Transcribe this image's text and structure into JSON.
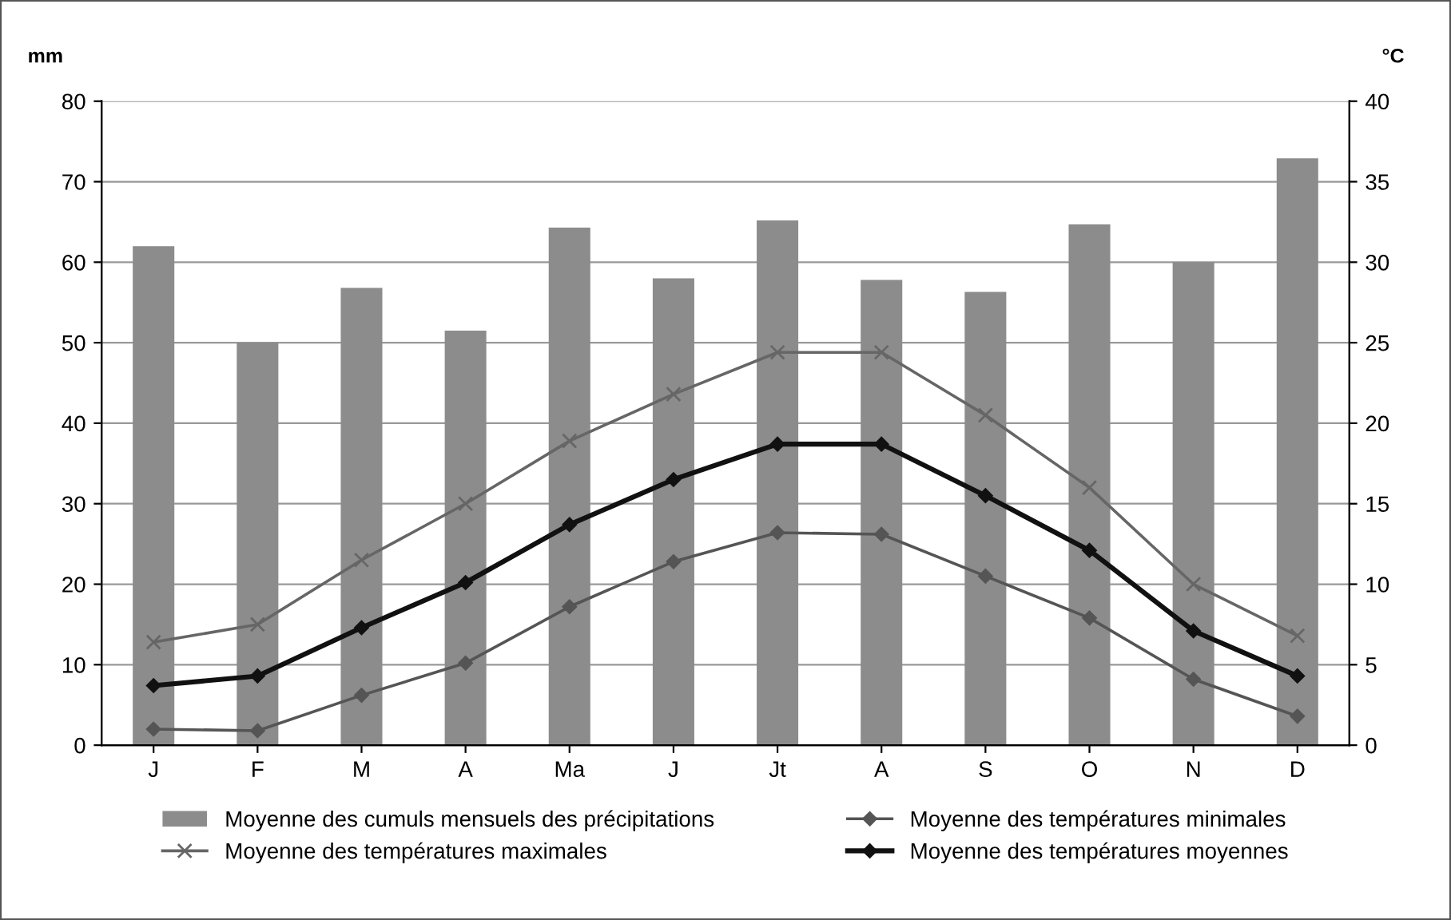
{
  "chart_data": {
    "type": "bar",
    "ylabel": "mm",
    "y2label": "°C",
    "categories": [
      "J",
      "F",
      "M",
      "A",
      "Ma",
      "J",
      "Jt",
      "A",
      "S",
      "O",
      "N",
      "D"
    ],
    "series": [
      {
        "name": "Moyenne des cumuls mensuels des précipitations",
        "color": "#8c8c8c",
        "values": [
          62,
          50,
          56.8,
          51.5,
          64.3,
          58,
          65.2,
          57.8,
          56.3,
          64.7,
          60,
          72.9
        ]
      },
      {
        "name": "Moyenne des températures minimales",
        "type": "line",
        "axis": "y2",
        "marker": "diamond",
        "color": "#555555",
        "values": [
          1.0,
          0.9,
          3.1,
          5.1,
          8.6,
          11.4,
          13.2,
          13.1,
          10.5,
          7.9,
          4.1,
          1.8
        ]
      },
      {
        "name": "Moyenne des températures maximales",
        "type": "line",
        "axis": "y2",
        "marker": "cross",
        "color": "#666666",
        "values": [
          6.4,
          7.5,
          11.5,
          15,
          18.9,
          21.8,
          24.4,
          24.4,
          20.5,
          16,
          10,
          6.8
        ]
      },
      {
        "name": "Moyenne des températures moyennes",
        "type": "line",
        "axis": "y2",
        "marker": "diamond",
        "color": "#111111",
        "values": [
          3.7,
          4.3,
          7.3,
          10.1,
          13.7,
          16.5,
          18.7,
          18.7,
          15.5,
          12.1,
          7.1,
          4.3
        ]
      }
    ],
    "ylim": [
      0,
      80
    ],
    "yticks": [
      0,
      10,
      20,
      30,
      40,
      50,
      60,
      70,
      80
    ],
    "y2lim": [
      0,
      40
    ],
    "y2ticks": [
      0,
      5,
      10,
      15,
      20,
      25,
      30,
      35,
      40
    ],
    "grid": "y",
    "legend": "bottom",
    "line_style": "solid"
  }
}
